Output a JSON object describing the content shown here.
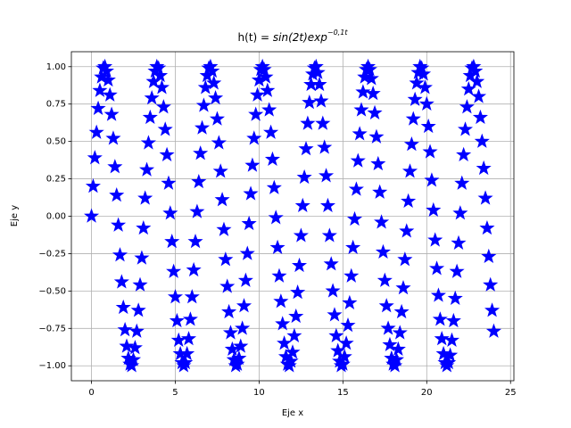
{
  "chart_data": {
    "type": "scatter",
    "title": {
      "text": "h(t) = ",
      "math": "sin(2t)exp",
      "superscript": "−0,1t"
    },
    "x_label": "Eje x",
    "y_label": "Eje y",
    "marker": "star",
    "color": "#0000ff",
    "grid": true,
    "xlim": [
      -1.2,
      25.2
    ],
    "ylim": [
      -1.1,
      1.1
    ],
    "xticks": [
      0,
      5,
      10,
      15,
      20,
      25
    ],
    "yticks": [
      {
        "value": -1,
        "label": "−1.00"
      },
      {
        "value": -0.75,
        "label": "−0.75"
      },
      {
        "value": -0.5,
        "label": "−0.50"
      },
      {
        "value": -0.25,
        "label": "−0.25"
      },
      {
        "value": 0,
        "label": "0.00"
      },
      {
        "value": 0.25,
        "label": "0.25"
      },
      {
        "value": 0.5,
        "label": "0.50"
      },
      {
        "value": 0.75,
        "label": "0.75"
      },
      {
        "value": 1,
        "label": "1.00"
      }
    ],
    "x": [
      0,
      0.1,
      0.2,
      0.3,
      0.4,
      0.5,
      0.6,
      0.7,
      0.8,
      0.9,
      1,
      1.1,
      1.2,
      1.3,
      1.4,
      1.5,
      1.6,
      1.7,
      1.8,
      1.9,
      2,
      2.1,
      2.2,
      2.3,
      2.4,
      2.5,
      2.6,
      2.7,
      2.8,
      2.9,
      3,
      3.1,
      3.2,
      3.3,
      3.4,
      3.5,
      3.6,
      3.7,
      3.8,
      3.9,
      4,
      4.1,
      4.2,
      4.3,
      4.4,
      4.5,
      4.6,
      4.7,
      4.8,
      4.9,
      5,
      5.1,
      5.2,
      5.3,
      5.4,
      5.5,
      5.6,
      5.7,
      5.8,
      5.9,
      6,
      6.1,
      6.2,
      6.3,
      6.4,
      6.5,
      6.6,
      6.7,
      6.8,
      6.9,
      7,
      7.1,
      7.2,
      7.3,
      7.4,
      7.5,
      7.6,
      7.7,
      7.8,
      7.9,
      8,
      8.1,
      8.2,
      8.3,
      8.4,
      8.5,
      8.6,
      8.7,
      8.8,
      8.9,
      9,
      9.1,
      9.2,
      9.3,
      9.4,
      9.5,
      9.6,
      9.7,
      9.8,
      9.9,
      10,
      10.1,
      10.2,
      10.3,
      10.4,
      10.5,
      10.6,
      10.7,
      10.8,
      10.9,
      11,
      11.1,
      11.2,
      11.3,
      11.4,
      11.5,
      11.6,
      11.7,
      11.8,
      11.9,
      12,
      12.1,
      12.2,
      12.3,
      12.4,
      12.5,
      12.6,
      12.7,
      12.8,
      12.9,
      13,
      13.1,
      13.2,
      13.3,
      13.4,
      13.5,
      13.6,
      13.7,
      13.8,
      13.9,
      14,
      14.1,
      14.2,
      14.3,
      14.4,
      14.5,
      14.6,
      14.7,
      14.8,
      14.9,
      15,
      15.1,
      15.2,
      15.3,
      15.4,
      15.5,
      15.6,
      15.7,
      15.8,
      15.9,
      16,
      16.1,
      16.2,
      16.3,
      16.4,
      16.5,
      16.6,
      16.7,
      16.8,
      16.9,
      17,
      17.1,
      17.2,
      17.3,
      17.4,
      17.5,
      17.6,
      17.7,
      17.8,
      17.9,
      18,
      18.1,
      18.2,
      18.3,
      18.4,
      18.5,
      18.6,
      18.7,
      18.8,
      18.9,
      19,
      19.1,
      19.2,
      19.3,
      19.4,
      19.5,
      19.6,
      19.7,
      19.8,
      19.9,
      20,
      20.1,
      20.2,
      20.3,
      20.4,
      20.5,
      20.6,
      20.7,
      20.8,
      20.9,
      21,
      21.1,
      21.2,
      21.3,
      21.4,
      21.5,
      21.6,
      21.7,
      21.8,
      21.9,
      22,
      22.1,
      22.2,
      22.3,
      22.4,
      22.5,
      22.6,
      22.7,
      22.8,
      22.9,
      23,
      23.1,
      23.2,
      23.3,
      23.4,
      23.5,
      23.6,
      23.7,
      23.8,
      23.9,
      24
    ],
    "values": [
      0,
      0.2,
      0.39,
      0.56,
      0.72,
      0.84,
      0.93,
      0.99,
      1,
      0.97,
      0.91,
      0.81,
      0.68,
      0.52,
      0.33,
      0.14,
      -0.06,
      -0.26,
      -0.44,
      -0.61,
      -0.76,
      -0.87,
      -0.95,
      -0.99,
      -1,
      -0.96,
      -0.88,
      -0.77,
      -0.63,
      -0.46,
      -0.28,
      -0.08,
      0.12,
      0.31,
      0.49,
      0.66,
      0.79,
      0.9,
      0.97,
      1,
      0.99,
      0.94,
      0.86,
      0.73,
      0.58,
      0.41,
      0.22,
      0.02,
      -0.17,
      -0.37,
      -0.54,
      -0.7,
      -0.83,
      -0.92,
      -0.98,
      -1,
      -0.98,
      -0.92,
      -0.82,
      -0.69,
      -0.54,
      -0.36,
      -0.17,
      0.03,
      0.23,
      0.42,
      0.59,
      0.74,
      0.86,
      0.94,
      0.99,
      1,
      0.97,
      0.89,
      0.79,
      0.65,
      0.49,
      0.3,
      0.11,
      -0.09,
      -0.29,
      -0.47,
      -0.64,
      -0.78,
      -0.89,
      -0.96,
      -1,
      -0.99,
      -0.95,
      -0.87,
      -0.75,
      -0.6,
      -0.43,
      -0.25,
      -0.05,
      0.15,
      0.34,
      0.52,
      0.68,
      0.81,
      0.91,
      0.98,
      1,
      0.98,
      0.93,
      0.84,
      0.71,
      0.56,
      0.38,
      0.19,
      -0.01,
      -0.21,
      -0.4,
      -0.57,
      -0.72,
      -0.85,
      -0.94,
      -0.99,
      -1,
      -0.97,
      -0.91,
      -0.8,
      -0.67,
      -0.51,
      -0.33,
      -0.13,
      0.07,
      0.26,
      0.45,
      0.62,
      0.76,
      0.88,
      0.95,
      0.99,
      1,
      0.96,
      0.88,
      0.77,
      0.62,
      0.46,
      0.27,
      0.07,
      -0.13,
      -0.32,
      -0.5,
      -0.66,
      -0.8,
      -0.9,
      -0.97,
      -1,
      -0.99,
      -0.94,
      -0.85,
      -0.73,
      -0.58,
      -0.4,
      -0.21,
      -0.02,
      0.18,
      0.37,
      0.55,
      0.71,
      0.83,
      0.93,
      0.98,
      1,
      0.98,
      0.92,
      0.82,
      0.69,
      0.53,
      0.35,
      0.16,
      -0.04,
      -0.24,
      -0.43,
      -0.6,
      -0.75,
      -0.86,
      -0.95,
      -0.99,
      -1,
      -0.96,
      -0.89,
      -0.78,
      -0.64,
      -0.48,
      -0.29,
      -0.1,
      0.1,
      0.3,
      0.48,
      0.65,
      0.78,
      0.89,
      0.96,
      1,
      0.99,
      0.95,
      0.86,
      0.75,
      0.6,
      0.43,
      0.24,
      0.04,
      -0.16,
      -0.35,
      -0.53,
      -0.69,
      -0.82,
      -0.92,
      -0.98,
      -1,
      -0.98,
      -0.93,
      -0.83,
      -0.7,
      -0.55,
      -0.37,
      -0.18,
      0.02,
      0.22,
      0.41,
      0.58,
      0.73,
      0.85,
      0.94,
      0.99,
      1,
      0.97,
      0.9,
      0.8,
      0.66,
      0.5,
      0.32,
      0.12,
      -0.08,
      -0.27,
      -0.46,
      -0.63,
      -0.77
    ]
  }
}
